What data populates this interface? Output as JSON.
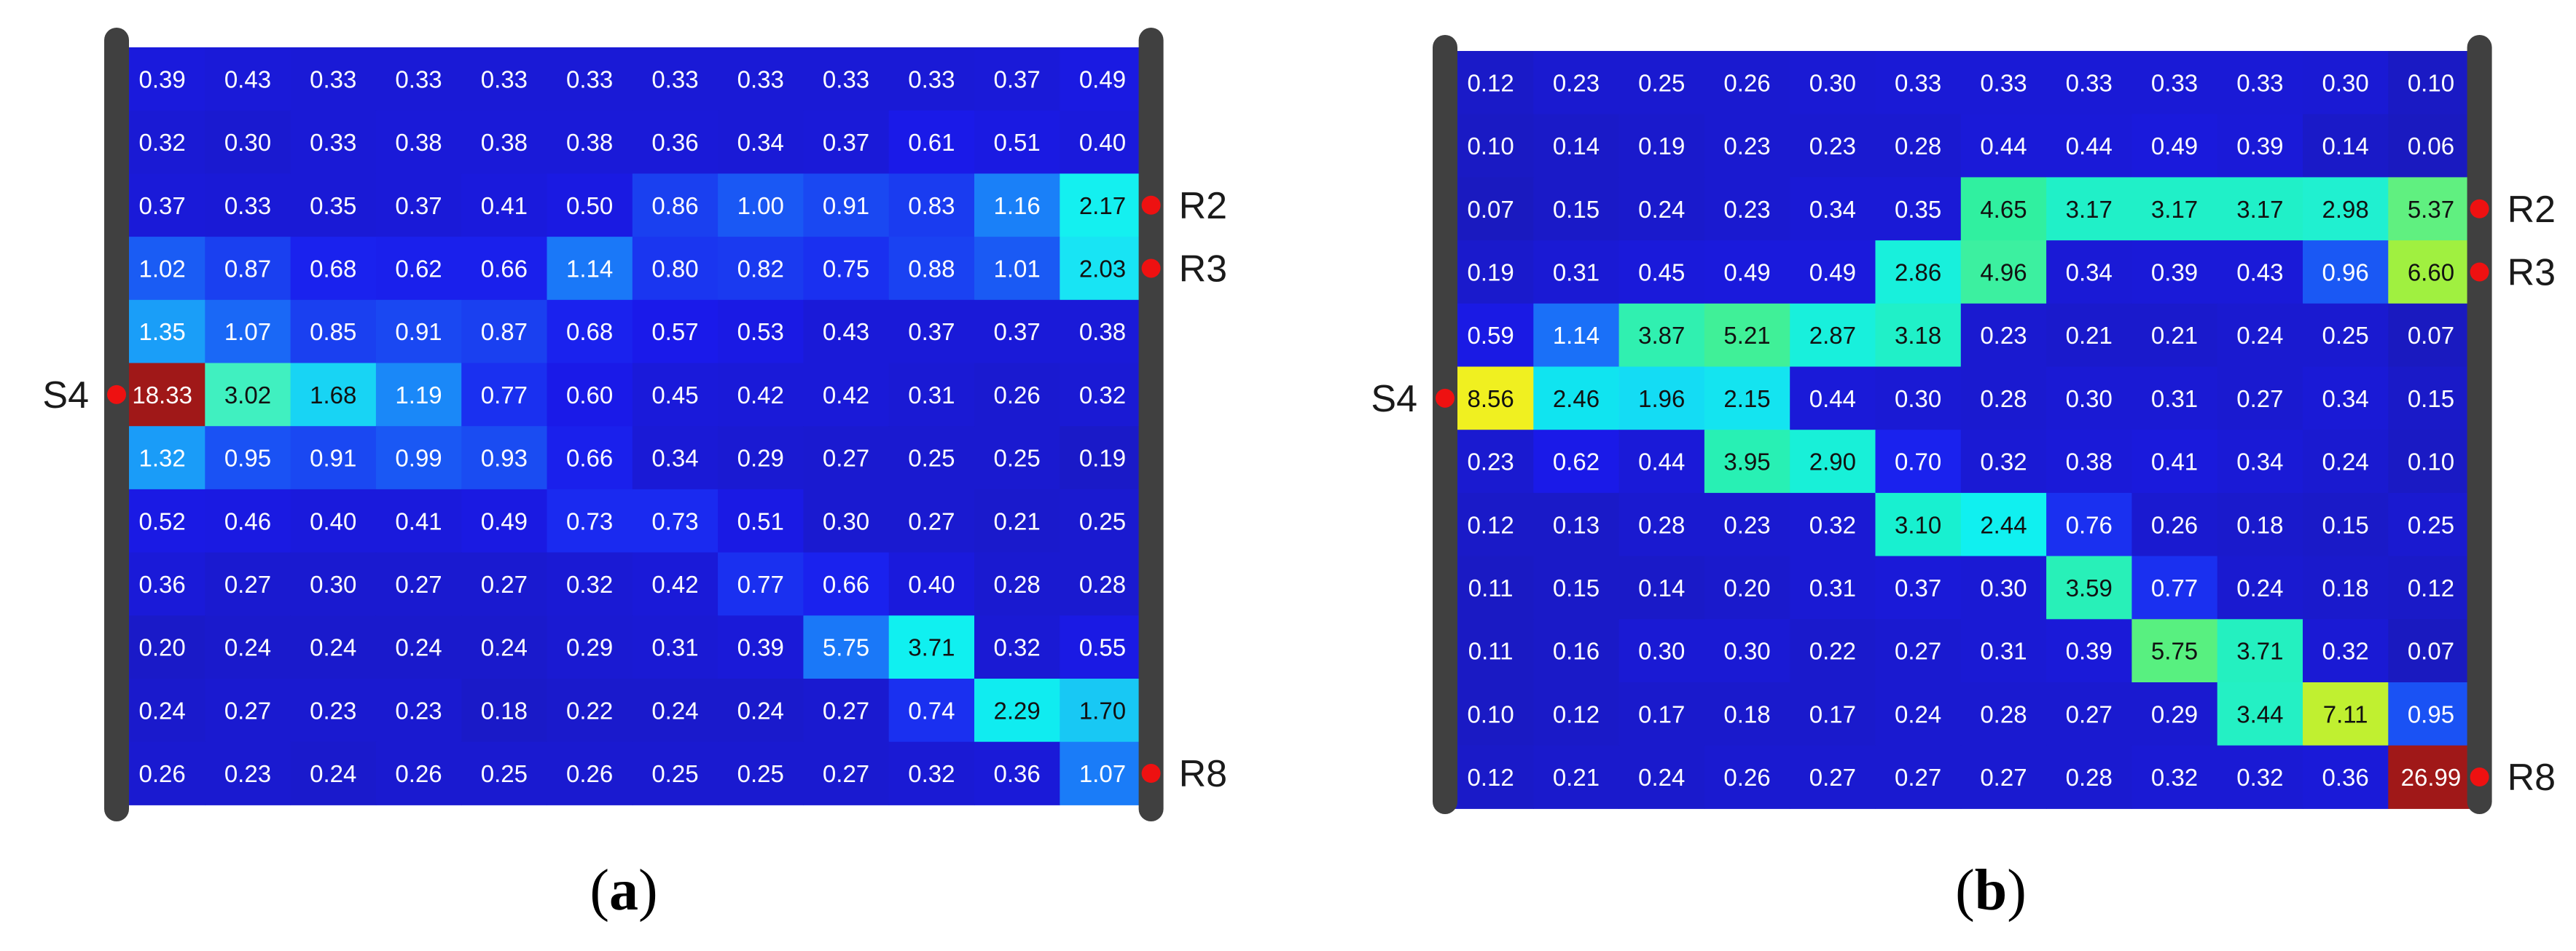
{
  "chart_data": [
    {
      "type": "heatmap",
      "caption": "a",
      "rows": 12,
      "cols": 12,
      "values": [
        [
          0.39,
          0.43,
          0.33,
          0.33,
          0.33,
          0.33,
          0.33,
          0.33,
          0.33,
          0.33,
          0.37,
          0.49
        ],
        [
          0.32,
          0.3,
          0.33,
          0.38,
          0.38,
          0.38,
          0.36,
          0.34,
          0.37,
          0.61,
          0.51,
          0.4
        ],
        [
          0.37,
          0.33,
          0.35,
          0.37,
          0.41,
          0.5,
          0.86,
          1.0,
          0.91,
          0.83,
          1.16,
          2.17
        ],
        [
          1.02,
          0.87,
          0.68,
          0.62,
          0.66,
          1.14,
          0.8,
          0.82,
          0.75,
          0.88,
          1.01,
          2.03
        ],
        [
          1.35,
          1.07,
          0.85,
          0.91,
          0.87,
          0.68,
          0.57,
          0.53,
          0.43,
          0.37,
          0.37,
          0.38
        ],
        [
          18.33,
          3.02,
          1.68,
          1.19,
          0.77,
          0.6,
          0.45,
          0.42,
          0.42,
          0.31,
          0.26,
          0.32
        ],
        [
          1.32,
          0.95,
          0.91,
          0.99,
          0.93,
          0.66,
          0.34,
          0.29,
          0.27,
          0.25,
          0.25,
          0.19
        ],
        [
          0.52,
          0.46,
          0.4,
          0.41,
          0.49,
          0.73,
          0.73,
          0.51,
          0.3,
          0.27,
          0.21,
          0.25
        ],
        [
          0.36,
          0.27,
          0.3,
          0.27,
          0.27,
          0.32,
          0.42,
          0.77,
          0.66,
          0.4,
          0.28,
          0.28
        ],
        [
          0.2,
          0.24,
          0.24,
          0.24,
          0.24,
          0.29,
          0.31,
          0.39,
          5.75,
          3.71,
          0.32,
          0.55
        ],
        [
          0.24,
          0.27,
          0.23,
          0.23,
          0.18,
          0.22,
          0.24,
          0.24,
          0.27,
          0.74,
          2.29,
          1.7
        ],
        [
          0.26,
          0.23,
          0.24,
          0.26,
          0.25,
          0.26,
          0.25,
          0.25,
          0.27,
          0.32,
          0.36,
          1.07
        ]
      ],
      "colors": [
        [
          "#1a1adc",
          "#1a1ad8",
          "#1a1ad6",
          "#1a1ad6",
          "#1a1ad6",
          "#1a1ad6",
          "#1a1ad6",
          "#1a1ad6",
          "#1a1ad6",
          "#1a1ad6",
          "#1a1ad8",
          "#1a1ae2"
        ],
        [
          "#1a1ad4",
          "#1a1ad0",
          "#1a1ad6",
          "#1a1ad8",
          "#1a1ad8",
          "#1a1ad8",
          "#1a1ad8",
          "#1a1ad6",
          "#1a1ad8",
          "#1a1ae8",
          "#1a1ae2",
          "#1a1adc"
        ],
        [
          "#1a1ad8",
          "#1a1ad6",
          "#1a1ad6",
          "#1a1ad8",
          "#1a1adc",
          "#1a1ae2",
          "#1a40f0",
          "#1a58f4",
          "#1a48f2",
          "#1a3cf0",
          "#1a80f8",
          "#14f0f0"
        ],
        [
          "#1a5cf4",
          "#1a40f0",
          "#1a22ee",
          "#1a20ec",
          "#1a20ec",
          "#1a78f8",
          "#1a36f0",
          "#1a3af0",
          "#1a30f0",
          "#1a42f2",
          "#1a5af4",
          "#18e4f4"
        ],
        [
          "#1a9ef8",
          "#1a68f6",
          "#1a40f0",
          "#1a48f2",
          "#1a40f0",
          "#1a22ee",
          "#1a1aea",
          "#1a1ae4",
          "#1a1ad8",
          "#1a1ad8",
          "#1a1ad8",
          "#1a1ad8"
        ],
        [
          "#a01818",
          "#40f0c0",
          "#18d4f4",
          "#1a88f8",
          "#1a30f0",
          "#1a1ae8",
          "#1a1ada",
          "#1a1ad8",
          "#1a1ad8",
          "#1a1ad4",
          "#1a1ad0",
          "#1a1ad4"
        ],
        [
          "#1a9cf8",
          "#1a52f4",
          "#1a48f2",
          "#1a58f4",
          "#1a4cf2",
          "#1a20ec",
          "#1a1ad6",
          "#1a1ad2",
          "#1a1ad0",
          "#1a1ad0",
          "#1a1ad0",
          "#1a1ac8"
        ],
        [
          "#1a1ae4",
          "#1a1ae2",
          "#1a1adc",
          "#1a1adc",
          "#1a1ae2",
          "#1a2af0",
          "#1a2af0",
          "#1a1ae4",
          "#1a1ad0",
          "#1a1ad0",
          "#1a1acc",
          "#1a1ad0"
        ],
        [
          "#1a1ad8",
          "#1a1ad0",
          "#1a1ad0",
          "#1a1ad0",
          "#1a1ad0",
          "#1a1ad4",
          "#1a1ad8",
          "#1a30f0",
          "#1a22ee",
          "#1a1adc",
          "#1a1ad0",
          "#1a1ad0"
        ],
        [
          "#1a1ac8",
          "#1a1acc",
          "#1a1acc",
          "#1a1acc",
          "#1a1acc",
          "#1a1ad2",
          "#1a1ad4",
          "#1a1ad8",
          "#1a78f8",
          "#10f0f0",
          "#1a1ad4",
          "#1a1ae4"
        ],
        [
          "#1a1acc",
          "#1a1ad0",
          "#1a1ad0",
          "#1a1ad0",
          "#1a1ac8",
          "#1a1acc",
          "#1a1acc",
          "#1a1acc",
          "#1a1ad0",
          "#1a30f0",
          "#10ecf0",
          "#18c8f4"
        ],
        [
          "#1a1ad0",
          "#1a1ad0",
          "#1a1acc",
          "#1a1ad0",
          "#1a1ad0",
          "#1a1ad0",
          "#1a1ad0",
          "#1a1ad0",
          "#1a1ad0",
          "#1a1ad4",
          "#1a1ad8",
          "#1a7cf8"
        ]
      ],
      "labels": {
        "source": "S4",
        "receivers": [
          "R2",
          "R3",
          "R8"
        ]
      }
    },
    {
      "type": "heatmap",
      "caption": "b",
      "rows": 12,
      "cols": 12,
      "values": [
        [
          0.12,
          0.23,
          0.25,
          0.26,
          0.3,
          0.33,
          0.33,
          0.33,
          0.33,
          0.33,
          0.3,
          0.1
        ],
        [
          0.1,
          0.14,
          0.19,
          0.23,
          0.23,
          0.28,
          0.44,
          0.44,
          0.49,
          0.39,
          0.14,
          0.06
        ],
        [
          0.07,
          0.15,
          0.24,
          0.23,
          0.34,
          0.35,
          4.65,
          3.17,
          3.17,
          3.17,
          2.98,
          5.37
        ],
        [
          0.19,
          0.31,
          0.45,
          0.49,
          0.49,
          2.86,
          4.96,
          0.34,
          0.39,
          0.43,
          0.96,
          6.6
        ],
        [
          0.59,
          1.14,
          3.87,
          5.21,
          2.87,
          3.18,
          0.23,
          0.21,
          0.21,
          0.24,
          0.25,
          0.07
        ],
        [
          8.56,
          2.46,
          1.96,
          2.15,
          0.44,
          0.3,
          0.28,
          0.3,
          0.31,
          0.27,
          0.34,
          0.15
        ],
        [
          0.23,
          0.62,
          0.44,
          3.95,
          2.9,
          0.7,
          0.32,
          0.38,
          0.41,
          0.34,
          0.24,
          0.1
        ],
        [
          0.12,
          0.13,
          0.28,
          0.23,
          0.32,
          3.1,
          2.44,
          0.76,
          0.26,
          0.18,
          0.15,
          0.25
        ],
        [
          0.11,
          0.15,
          0.14,
          0.2,
          0.31,
          0.37,
          0.3,
          3.59,
          0.77,
          0.24,
          0.18,
          0.12
        ],
        [
          0.11,
          0.16,
          0.3,
          0.3,
          0.22,
          0.27,
          0.31,
          0.39,
          5.75,
          3.71,
          0.32,
          0.07
        ],
        [
          0.1,
          0.12,
          0.17,
          0.18,
          0.17,
          0.24,
          0.28,
          0.27,
          0.29,
          3.44,
          7.11,
          0.95
        ],
        [
          0.12,
          0.21,
          0.24,
          0.26,
          0.27,
          0.27,
          0.27,
          0.28,
          0.32,
          0.32,
          0.36,
          26.99
        ]
      ],
      "colors": [
        [
          "#1a1ac8",
          "#1a1ad0",
          "#1a1ad0",
          "#1a1ad0",
          "#1a1ad4",
          "#1a1ad6",
          "#1a1ad6",
          "#1a1ad6",
          "#1a1ad6",
          "#1a1ad6",
          "#1a1ad4",
          "#1a1ac4"
        ],
        [
          "#1a1ac4",
          "#1a1ac8",
          "#1a1acc",
          "#1a1ad0",
          "#1a1ad0",
          "#1a1ad0",
          "#1a1ad8",
          "#1a1ad8",
          "#1a1adc",
          "#1a1ad8",
          "#1a1ac8",
          "#1a1ac0"
        ],
        [
          "#1a1ac0",
          "#1a1ac8",
          "#1a1acc",
          "#1a1ad0",
          "#1a1ad6",
          "#1a1ad6",
          "#30f0a0",
          "#20f0c8",
          "#20f0c8",
          "#20f0c8",
          "#20f0d0",
          "#60f080"
        ],
        [
          "#1a1acc",
          "#1a1ad4",
          "#1a1ada",
          "#1a1adc",
          "#1a1adc",
          "#18f0dc",
          "#3cf0a0",
          "#1a1ad6",
          "#1a1ad8",
          "#1a1ad8",
          "#1a58f4",
          "#a0f040"
        ],
        [
          "#1a1ae4",
          "#1a70f8",
          "#30f0b0",
          "#40f098",
          "#18f0dc",
          "#20f0c8",
          "#1a1ad0",
          "#1a1acc",
          "#1a1acc",
          "#1a1ad0",
          "#1a1ad0",
          "#1a1ac0"
        ],
        [
          "#f0f020",
          "#10e4f0",
          "#14dcf4",
          "#14e4f0",
          "#1a1ad8",
          "#1a1ad4",
          "#1a1ad0",
          "#1a1ad4",
          "#1a1ad4",
          "#1a1ad0",
          "#1a1ad6",
          "#1a1ac8"
        ],
        [
          "#1a1ad0",
          "#1a1ae8",
          "#1a1ad8",
          "#28f0b4",
          "#18f0d8",
          "#1a22ee",
          "#1a1ad4",
          "#1a1ad8",
          "#1a1adc",
          "#1a1ad6",
          "#1a1ad0",
          "#1a1ac4"
        ],
        [
          "#1a1ac8",
          "#1a1ac8",
          "#1a1ad0",
          "#1a1ad0",
          "#1a1ad4",
          "#18f0d0",
          "#10f0f0",
          "#1a30f0",
          "#1a1ad0",
          "#1a1acc",
          "#1a1ac8",
          "#1a1ad0"
        ],
        [
          "#1a1ac4",
          "#1a1ac8",
          "#1a1ac8",
          "#1a1acc",
          "#1a1ad4",
          "#1a1ad8",
          "#1a1ad4",
          "#28f0b8",
          "#1a30f0",
          "#1a1ad0",
          "#1a1acc",
          "#1a1ac8"
        ],
        [
          "#1a1ac4",
          "#1a1ac8",
          "#1a1ad4",
          "#1a1ad4",
          "#1a1acc",
          "#1a1ad0",
          "#1a1ad4",
          "#1a1ad8",
          "#58f080",
          "#24f0c0",
          "#1a1ad4",
          "#1a1ac0"
        ],
        [
          "#1a1ac4",
          "#1a1ac8",
          "#1a1acc",
          "#1a1acc",
          "#1a1acc",
          "#1a1ad0",
          "#1a1ad0",
          "#1a1ad0",
          "#1a1ad0",
          "#24f0c4",
          "#c0f030",
          "#1a52f4"
        ],
        [
          "#1a1ac8",
          "#1a1acc",
          "#1a1acc",
          "#1a1ad0",
          "#1a1ad0",
          "#1a1ad0",
          "#1a1ad0",
          "#1a1ad0",
          "#1a1ad4",
          "#1a1ad4",
          "#1a1ad8",
          "#a01818"
        ]
      ],
      "labels": {
        "source": "S4",
        "receivers": [
          "R2",
          "R3",
          "R8"
        ]
      }
    }
  ]
}
